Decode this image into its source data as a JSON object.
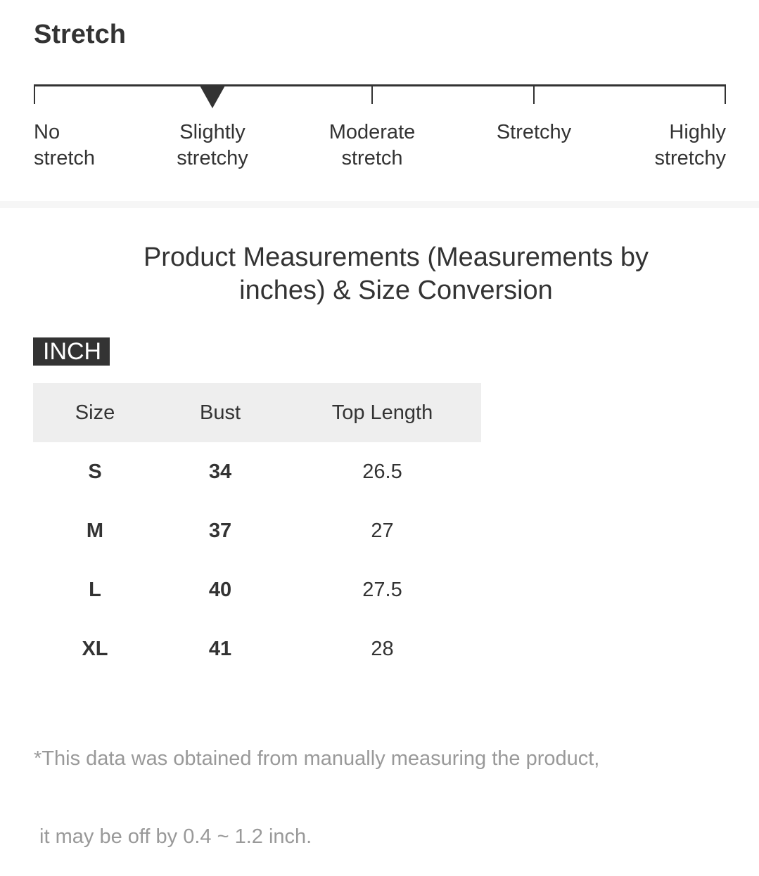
{
  "stretch": {
    "title": "Stretch",
    "levels": [
      {
        "line1": "No",
        "line2": "stretch"
      },
      {
        "line1": "Slightly",
        "line2": "stretchy"
      },
      {
        "line1": "Moderate",
        "line2": "stretch"
      },
      {
        "line1": "Stretchy",
        "line2": ""
      },
      {
        "line1": "Highly",
        "line2": "stretchy"
      }
    ],
    "selected_level": "Slightly stretchy"
  },
  "measurements": {
    "title_line1": "Product Measurements (Measurements by",
    "title_line2": "inches) & Size Conversion",
    "unit": "INCH",
    "columns": [
      "Size",
      "Bust",
      "Top Length"
    ],
    "rows": [
      {
        "size": "S",
        "bust": "34",
        "top_length": "26.5"
      },
      {
        "size": "M",
        "bust": "37",
        "top_length": "27"
      },
      {
        "size": "L",
        "bust": "40",
        "top_length": "27.5"
      },
      {
        "size": "XL",
        "bust": "41",
        "top_length": "28"
      }
    ]
  },
  "footnote": {
    "line1": "*This data was obtained from manually measuring the product,",
    "line2": " it may be off by 0.4 ~ 1.2 inch."
  },
  "colors": {
    "text": "#333333",
    "header_bg": "#eeeeee",
    "footnote": "#999999",
    "badge_bg": "#333333"
  }
}
